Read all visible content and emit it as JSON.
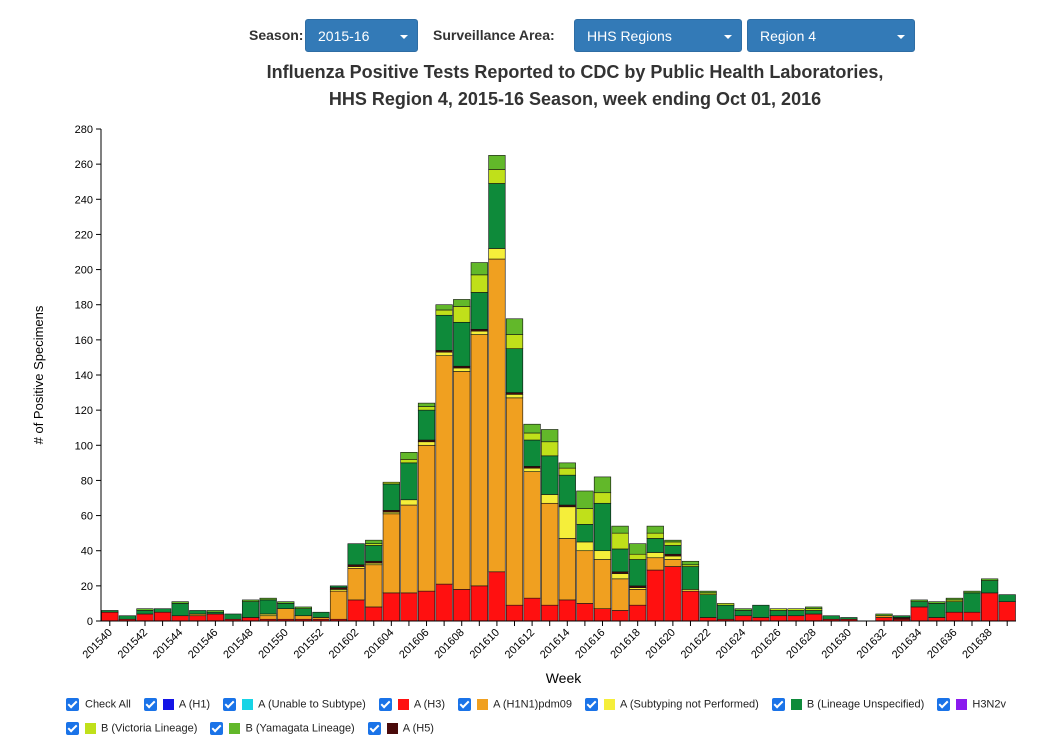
{
  "controls": {
    "season_label": "Season:",
    "season_value": "2015-16",
    "area_label": "Surveillance Area:",
    "area_value": "HHS Regions",
    "region_value": "Region 4"
  },
  "legend": {
    "check_all": "Check All",
    "items": [
      {
        "label": "A (H1)",
        "color": "#1414e6"
      },
      {
        "label": "A (Unable to Subtype)",
        "color": "#17d4e6"
      },
      {
        "label": "A (H3)",
        "color": "#ff1010"
      },
      {
        "label": "A (H1N1)pdm09",
        "color": "#f0a020"
      },
      {
        "label": "A (Subtyping not Performed)",
        "color": "#f5ee3a"
      },
      {
        "label": "B (Lineage Unspecified)",
        "color": "#0e8a3a"
      },
      {
        "label": "H3N2v",
        "color": "#8a1aee"
      },
      {
        "label": "B (Victoria Lineage)",
        "color": "#c0e01a"
      },
      {
        "label": "B (Yamagata Lineage)",
        "color": "#62b82a"
      },
      {
        "label": "A (H5)",
        "color": "#4a0a0a"
      }
    ]
  },
  "chart_data": {
    "type": "bar",
    "stacked": true,
    "title": "Influenza Positive Tests Reported to CDC by Public Health Laboratories,",
    "subtitle": "HHS Region 4, 2015-16 Season, week ending Oct 01, 2016",
    "xlabel": "Week",
    "ylabel": "# of Positive Specimens",
    "ylim": [
      0,
      280
    ],
    "yticks": [
      "0",
      "20",
      "40",
      "60",
      "80",
      "100",
      "120",
      "140",
      "160",
      "180",
      "200",
      "220",
      "240",
      "260",
      "280"
    ],
    "xtick_labels": [
      "201540",
      "201542",
      "201544",
      "201546",
      "201548",
      "201550",
      "201552",
      "201602",
      "201604",
      "201606",
      "201608",
      "201610",
      "201612",
      "201614",
      "201616",
      "201618",
      "201620",
      "201622",
      "201624",
      "201626",
      "201628",
      "201630",
      "201632",
      "201634",
      "201636",
      "201638"
    ],
    "categories": [
      "201540",
      "201541",
      "201542",
      "201543",
      "201544",
      "201545",
      "201546",
      "201547",
      "201548",
      "201549",
      "201550",
      "201551",
      "201552",
      "201601",
      "201602",
      "201603",
      "201604",
      "201605",
      "201606",
      "201607",
      "201608",
      "201609",
      "201610",
      "201611",
      "201612",
      "201613",
      "201614",
      "201615",
      "201616",
      "201617",
      "201618",
      "201619",
      "201620",
      "201621",
      "201622",
      "201623",
      "201624",
      "201625",
      "201626",
      "201627",
      "201628",
      "201629",
      "201630",
      "201631",
      "201632",
      "201633",
      "201634",
      "201635",
      "201636",
      "201637",
      "201638",
      "201639"
    ],
    "series": [
      {
        "name": "A (H3)",
        "color": "#ff1010",
        "values": [
          5,
          1,
          4,
          5,
          3,
          3,
          4,
          1,
          2,
          1,
          1,
          1,
          1,
          1,
          12,
          8,
          16,
          16,
          17,
          21,
          18,
          20,
          28,
          9,
          13,
          9,
          12,
          10,
          7,
          6,
          9,
          29,
          31,
          17,
          2,
          1,
          3,
          2,
          3,
          3,
          4,
          1,
          1,
          0,
          2,
          1,
          8,
          2,
          5,
          5,
          16,
          11
        ]
      },
      {
        "name": "A (H1N1)pdm09",
        "color": "#f0a020",
        "values": [
          0,
          0,
          0,
          0,
          0,
          1,
          0,
          0,
          0,
          2,
          6,
          2,
          1,
          16,
          18,
          24,
          45,
          50,
          83,
          130,
          124,
          143,
          178,
          118,
          72,
          58,
          35,
          30,
          28,
          18,
          9,
          7,
          4,
          0,
          0,
          0,
          0,
          0,
          0,
          0,
          0,
          0,
          0,
          0,
          1,
          0,
          0,
          0,
          0,
          0,
          0,
          0
        ]
      },
      {
        "name": "A (Subtyping not Performed)",
        "color": "#f5ee3a",
        "values": [
          0,
          0,
          0,
          0,
          0,
          0,
          0,
          0,
          0,
          1,
          0,
          0,
          0,
          1,
          1,
          1,
          1,
          3,
          2,
          2,
          2,
          2,
          6,
          2,
          2,
          5,
          18,
          5,
          5,
          3,
          1,
          3,
          2,
          1,
          0,
          0,
          0,
          0,
          0,
          0,
          0,
          0,
          0,
          0,
          0,
          0,
          0,
          0,
          0,
          0,
          0,
          0
        ]
      },
      {
        "name": "A (H5)",
        "color": "#4a0a0a",
        "values": [
          0,
          0,
          0,
          0,
          0,
          0,
          0,
          0,
          0,
          0,
          0,
          0,
          0,
          1,
          1,
          1,
          1,
          0,
          1,
          1,
          1,
          1,
          0,
          1,
          1,
          0,
          1,
          0,
          0,
          1,
          1,
          0,
          1,
          0,
          0,
          0,
          0,
          0,
          0,
          0,
          0,
          0,
          0,
          0,
          0,
          1,
          0,
          0,
          0,
          0,
          0,
          0
        ]
      },
      {
        "name": "B (Lineage Unspecified)",
        "color": "#0e8a3a",
        "values": [
          1,
          2,
          2,
          2,
          7,
          2,
          1,
          3,
          9,
          8,
          3,
          4,
          3,
          1,
          12,
          9,
          15,
          21,
          17,
          20,
          25,
          21,
          37,
          25,
          15,
          22,
          17,
          10,
          27,
          13,
          15,
          8,
          5,
          13,
          13,
          8,
          3,
          7,
          3,
          3,
          2,
          2,
          1,
          0,
          0,
          1,
          3,
          8,
          6,
          11,
          7,
          4
        ]
      },
      {
        "name": "B (Victoria Lineage)",
        "color": "#c0e01a",
        "values": [
          0,
          0,
          0,
          0,
          0,
          0,
          0,
          0,
          0,
          0,
          0,
          0,
          0,
          0,
          0,
          1,
          1,
          2,
          2,
          3,
          9,
          10,
          8,
          8,
          4,
          8,
          4,
          9,
          6,
          9,
          3,
          3,
          2,
          1,
          1,
          1,
          0,
          0,
          1,
          1,
          1,
          0,
          0,
          0,
          0,
          0,
          0,
          0,
          1,
          0,
          0,
          0
        ]
      },
      {
        "name": "B (Yamagata Lineage)",
        "color": "#62b82a",
        "values": [
          0,
          0,
          1,
          0,
          1,
          0,
          1,
          0,
          1,
          1,
          1,
          1,
          0,
          0,
          0,
          2,
          0,
          4,
          2,
          3,
          4,
          7,
          8,
          9,
          5,
          7,
          3,
          10,
          9,
          4,
          6,
          4,
          1,
          2,
          1,
          0,
          1,
          0,
          0,
          0,
          1,
          0,
          0,
          0,
          1,
          0,
          1,
          1,
          1,
          1,
          1,
          0
        ]
      }
    ]
  }
}
